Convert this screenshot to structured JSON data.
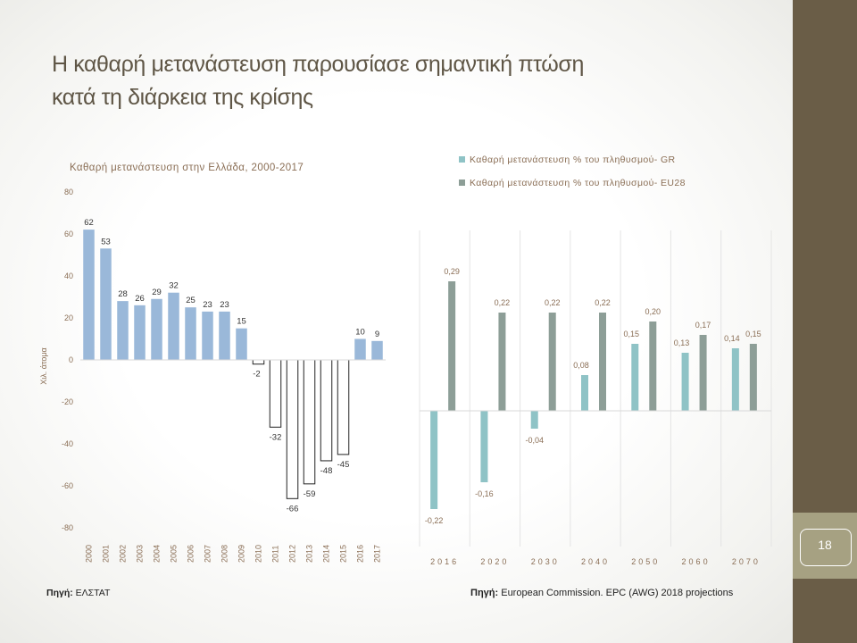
{
  "slide": {
    "title_line1": "Η καθαρή μετανάστευση παρουσίασε σημαντική πτώση",
    "title_line2": "κατά τη διάρκεια της κρίσης",
    "page_number": "18",
    "source_left_label": "Πηγή:",
    "source_left_text": " ΕΛΣΤΑΤ",
    "source_right_label": "Πηγή:",
    "source_right_text": " European Commission. EPC (AWG) 2018 projections"
  },
  "colors": {
    "sidebar": "#6a5d47",
    "pagebox": "#a6a182",
    "title": "#5f5646",
    "bar_positive": "#9ab8d9",
    "bar_negative_fill": "#ffffff",
    "bar_negative_stroke": "#222222",
    "gr_series": "#8fc3c6",
    "eu_series": "#8d9e97"
  },
  "chart_data": [
    {
      "type": "bar",
      "title": "Καθαρή μετανάστευση στην Ελλάδα, 2000-2017",
      "ylabel": "Χιλ. άτομα",
      "ylim": [
        -80,
        80
      ],
      "yticks": [
        80,
        60,
        40,
        20,
        0,
        -20,
        -40,
        -60,
        -80
      ],
      "categories": [
        "2000",
        "2001",
        "2002",
        "2003",
        "2004",
        "2005",
        "2006",
        "2007",
        "2008",
        "2009",
        "2010",
        "2011",
        "2012",
        "2013",
        "2014",
        "2015",
        "2016",
        "2017"
      ],
      "values": [
        62,
        53,
        28,
        26,
        29,
        32,
        25,
        23,
        23,
        15,
        -2,
        -32,
        -66,
        -59,
        -48,
        -45,
        10,
        9
      ],
      "grid": false
    },
    {
      "type": "bar",
      "categories": [
        "2016",
        "2020",
        "2030",
        "2040",
        "2050",
        "2060",
        "2070"
      ],
      "ylim": [
        -0.26,
        0.36
      ],
      "legend_position": "top",
      "series": [
        {
          "name": "Καθαρή μετανάστευση % του πληθυσμού- GR",
          "values": [
            -0.22,
            -0.16,
            -0.04,
            0.08,
            0.15,
            0.13,
            0.14
          ],
          "labels": [
            "-0,22",
            "-0,16",
            "-0,04",
            "0,08",
            "0,15",
            "0,13",
            "0,14"
          ]
        },
        {
          "name": "Καθαρή μετανάστευση % του πληθυσμού- EU28",
          "values": [
            0.29,
            0.22,
            0.22,
            0.22,
            0.2,
            0.17,
            0.15
          ],
          "labels": [
            "0,29",
            "0,22",
            "0,22",
            "0,22",
            "0,20",
            "0,17",
            "0,15"
          ]
        }
      ],
      "grid": false
    }
  ]
}
